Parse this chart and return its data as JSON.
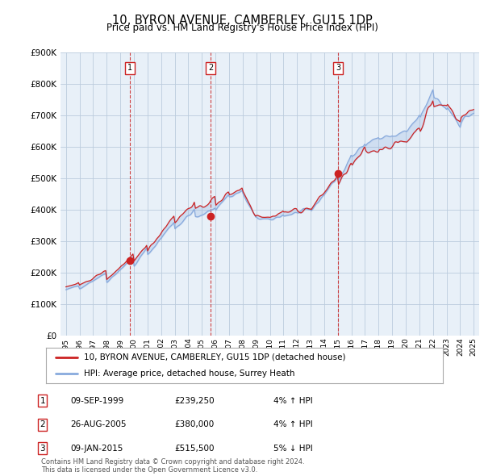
{
  "title": "10, BYRON AVENUE, CAMBERLEY, GU15 1DP",
  "subtitle": "Price paid vs. HM Land Registry's House Price Index (HPI)",
  "ylim": [
    0,
    900000
  ],
  "yticks": [
    0,
    100000,
    200000,
    300000,
    400000,
    500000,
    600000,
    700000,
    800000,
    900000
  ],
  "ytick_labels": [
    "£0",
    "£100K",
    "£200K",
    "£300K",
    "£400K",
    "£500K",
    "£600K",
    "£700K",
    "£800K",
    "£900K"
  ],
  "sale_dates": [
    1999.69,
    2005.65,
    2015.03
  ],
  "sale_prices": [
    239250,
    380000,
    515500
  ],
  "sale_labels": [
    "1",
    "2",
    "3"
  ],
  "legend_line1": "10, BYRON AVENUE, CAMBERLEY, GU15 1DP (detached house)",
  "legend_line2": "HPI: Average price, detached house, Surrey Heath",
  "table_rows": [
    [
      "1",
      "09-SEP-1999",
      "£239,250",
      "4% ↑ HPI"
    ],
    [
      "2",
      "26-AUG-2005",
      "£380,000",
      "4% ↑ HPI"
    ],
    [
      "3",
      "09-JAN-2015",
      "£515,500",
      "5% ↓ HPI"
    ]
  ],
  "footer": "Contains HM Land Registry data © Crown copyright and database right 2024.\nThis data is licensed under the Open Government Licence v3.0.",
  "line_color_red": "#cc2222",
  "line_color_blue": "#88aadd",
  "fill_color": "#ddeeff",
  "bg_color": "#ffffff",
  "plot_bg_color": "#e8f0f8",
  "grid_color": "#bbccdd",
  "title_fontsize": 10.5,
  "subtitle_fontsize": 8.5
}
